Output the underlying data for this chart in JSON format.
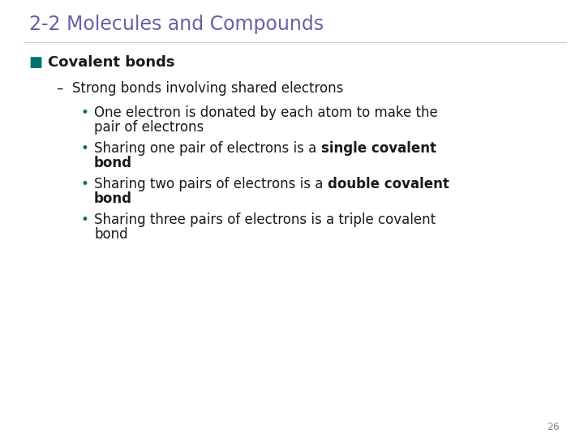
{
  "title": "2-2 Molecules and Compounds",
  "title_color": "#6B5EA8",
  "title_fontsize": 17,
  "background_color": "#FFFFFF",
  "page_number": "26",
  "section_bullet_color": "#007070",
  "section_bullet_square": "■",
  "section_text": "Covalent bonds",
  "section_fontsize": 13,
  "dash_text": "Strong bonds involving shared electrons",
  "dash_fontsize": 12,
  "bullet_color": "#007070",
  "bullet_char": "•",
  "bullet_fontsize": 12,
  "text_color": "#1a1a1a"
}
